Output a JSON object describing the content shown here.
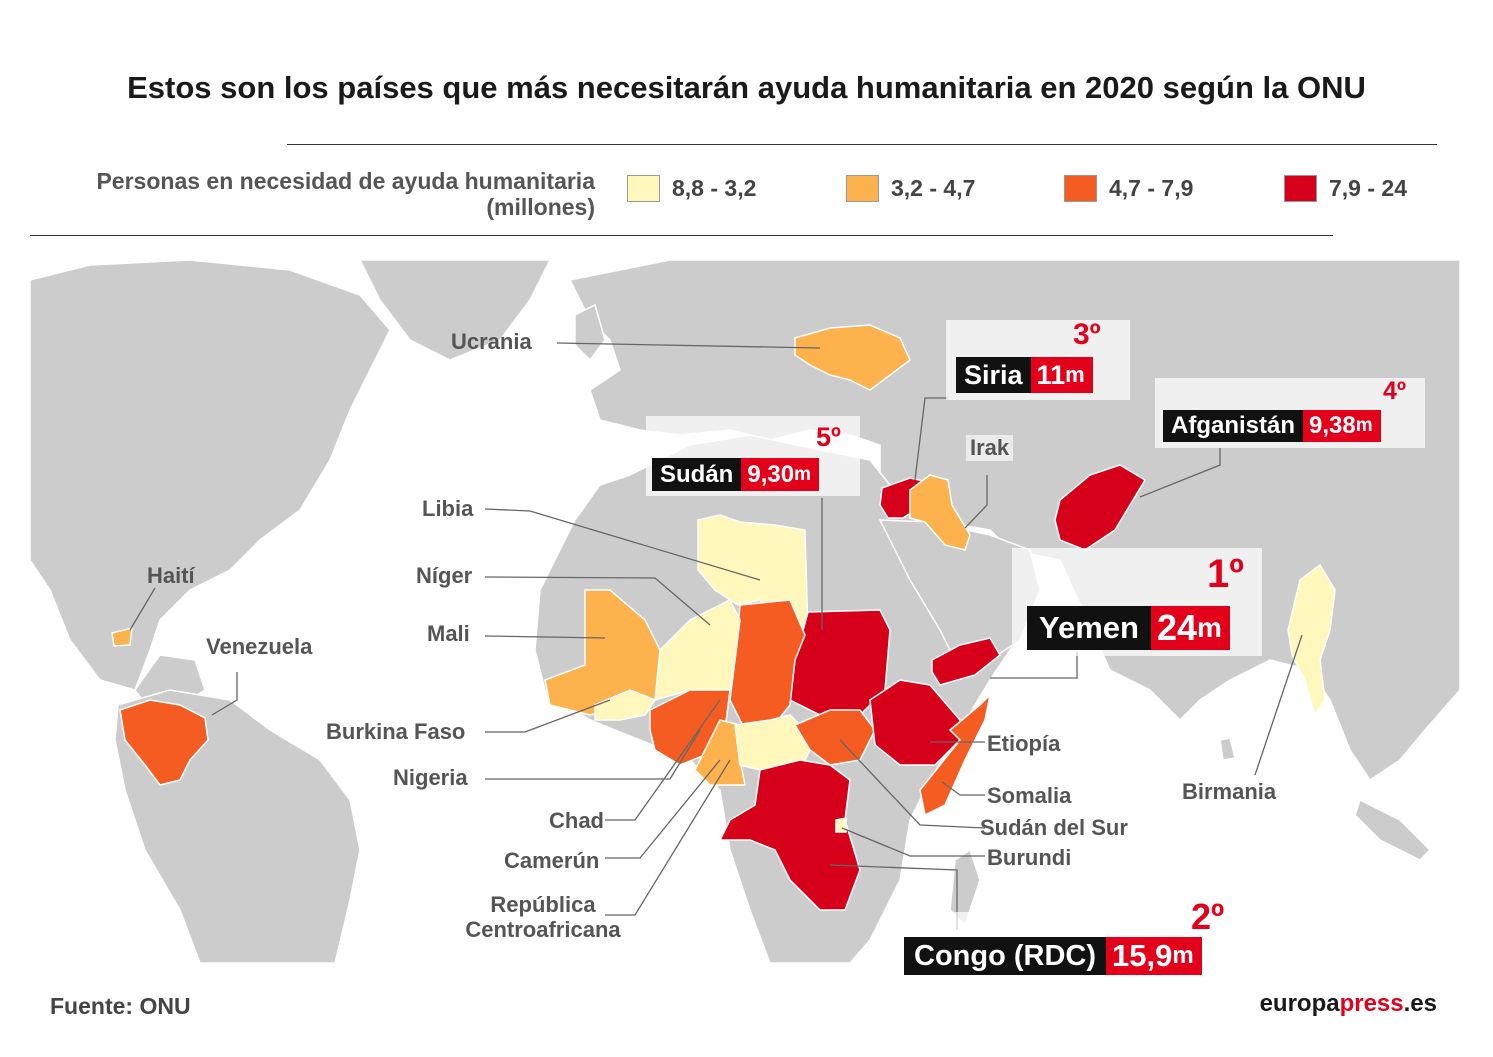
{
  "title": "Estos son los países que más necesitarán ayuda humanitaria en 2020 según la ONU",
  "legend": {
    "title_line1": "Personas en necesidad de ayuda humanitaria",
    "title_line2": "(millones)",
    "items": [
      {
        "label": "8,8 - 3,2",
        "color": "#fff7bc"
      },
      {
        "label": "3,2 - 4,7",
        "color": "#fdb24e"
      },
      {
        "label": "4,7 - 7,9",
        "color": "#f45c22"
      },
      {
        "label": "7,9 - 24",
        "color": "#d7001b"
      }
    ]
  },
  "colors": {
    "land": "#cccccc",
    "borders": "#ffffff",
    "accent": "#e2001a",
    "dark": "#111111"
  },
  "countries": {
    "ucrania": "Ucrania",
    "haiti": "Haití",
    "venezuela": "Venezuela",
    "libia": "Libia",
    "niger": "Níger",
    "mali": "Mali",
    "burkina": "Burkina Faso",
    "nigeria": "Nigeria",
    "chad": "Chad",
    "camerun": "Camerún",
    "rca_line1": "República",
    "rca_line2": "Centroafricana",
    "irak": "Irak",
    "etiopia": "Etiopía",
    "somalia": "Somalia",
    "sudan_sur": "Sudán del Sur",
    "burundi": "Burundi",
    "birmania": "Birmania"
  },
  "ranking": [
    {
      "rank": "1º",
      "name": "Yemen",
      "value": "24",
      "unit": "m"
    },
    {
      "rank": "2º",
      "name": "Congo (RDC)",
      "value": "15,9",
      "unit": "m"
    },
    {
      "rank": "3º",
      "name": "Siria",
      "value": "11",
      "unit": "m"
    },
    {
      "rank": "4º",
      "name": "Afganistán",
      "value": "9,38",
      "unit": "m"
    },
    {
      "rank": "5º",
      "name": "Sudán",
      "value": "9,30",
      "unit": "m"
    }
  ],
  "source": "Fuente: ONU",
  "brand": {
    "part1": "europa",
    "part2": "press",
    "part3": ".es"
  }
}
